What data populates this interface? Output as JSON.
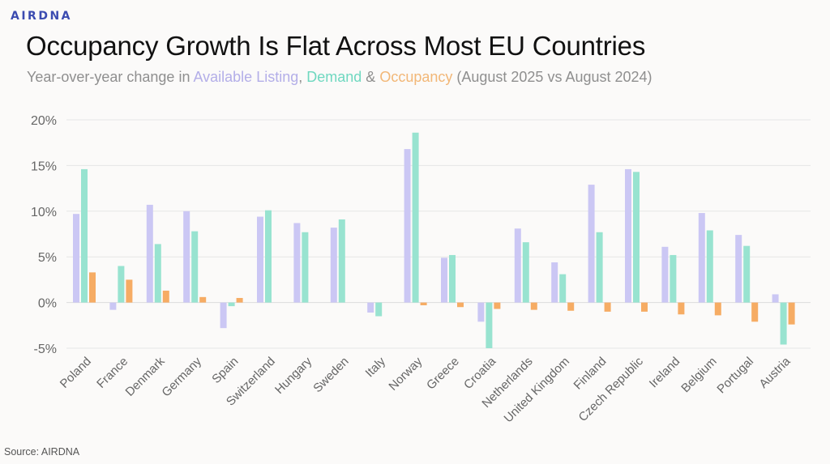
{
  "brand": {
    "logo_text": "AIRDNA"
  },
  "header": {
    "title": "Occupancy Growth Is Flat Across Most EU Countries",
    "subtitle_prefix": "Year-over-year change in ",
    "subtitle_series1": "Available Listing",
    "subtitle_sep1": ", ",
    "subtitle_series2": "Demand",
    "subtitle_sep2": " & ",
    "subtitle_series3": "Occupancy",
    "subtitle_suffix": " (August 2025 vs August 2024)"
  },
  "footer": {
    "source": "Source: AIRDNA"
  },
  "chart_data": {
    "type": "bar",
    "title": "Occupancy Growth Is Flat Across Most EU Countries",
    "subtitle": "Year-over-year change in Available Listing, Demand & Occupancy (August 2025 vs August 2024)",
    "xlabel": "",
    "ylabel": "",
    "ylim": [
      -5,
      20
    ],
    "yticks": [
      -5,
      0,
      5,
      10,
      15,
      20
    ],
    "ytick_labels": [
      "-5%",
      "0%",
      "5%",
      "10%",
      "15%",
      "20%"
    ],
    "grid": true,
    "legend": "in subtitle (colored text)",
    "categories": [
      "Poland",
      "France",
      "Denmark",
      "Germany",
      "Spain",
      "Switzerland",
      "Hungary",
      "Sweden",
      "Italy",
      "Norway",
      "Greece",
      "Croatia",
      "Netherlands",
      "United Kingdom",
      "Finland",
      "Czech Republic",
      "Ireland",
      "Belgium",
      "Portugal",
      "Austria"
    ],
    "series": [
      {
        "name": "Available Listing",
        "color": "#cbc7f4",
        "values": [
          9.7,
          -0.8,
          10.7,
          10.0,
          -2.8,
          9.4,
          8.7,
          8.2,
          -1.1,
          16.8,
          4.9,
          -2.1,
          8.1,
          4.4,
          12.9,
          14.6,
          6.1,
          9.8,
          7.4,
          0.9
        ]
      },
      {
        "name": "Demand",
        "color": "#98e3d0",
        "values": [
          14.6,
          4.0,
          6.4,
          7.8,
          -0.4,
          10.1,
          7.7,
          9.1,
          -1.5,
          18.6,
          5.2,
          -5.0,
          6.6,
          3.1,
          7.7,
          14.3,
          5.2,
          7.9,
          6.2,
          -4.6
        ]
      },
      {
        "name": "Occupancy",
        "color": "#f6ac64",
        "values": [
          3.3,
          2.5,
          1.3,
          0.6,
          0.5,
          0.0,
          0.0,
          0.0,
          0.0,
          -0.3,
          -0.5,
          -0.7,
          -0.8,
          -0.9,
          -1.0,
          -1.0,
          -1.3,
          -1.4,
          -2.1,
          -2.4
        ]
      }
    ]
  }
}
